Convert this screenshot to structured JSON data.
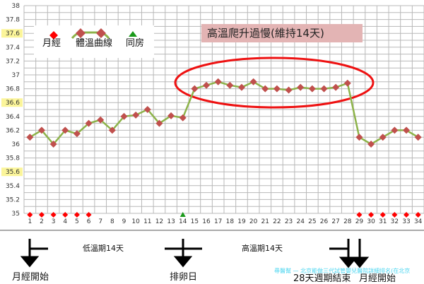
{
  "chart_data": {
    "type": "line",
    "title": "",
    "xlabel": "",
    "ylabel": "",
    "ylim": [
      35,
      38
    ],
    "y_ticks": [
      "38",
      "37.8",
      "37.6",
      "37.4",
      "37.2",
      "37",
      "36.8",
      "36.6",
      "36.4",
      "36.2",
      "36",
      "35.8",
      "35.6",
      "35.4",
      "35.2",
      "35"
    ],
    "y_highlighted_ticks": [
      "37.6",
      "36.6",
      "35.6"
    ],
    "grid": true,
    "categories": [
      1,
      2,
      3,
      4,
      5,
      6,
      7,
      8,
      9,
      10,
      11,
      12,
      13,
      14,
      15,
      16,
      17,
      18,
      19,
      20,
      21,
      22,
      23,
      24,
      25,
      26,
      27,
      28,
      29,
      30,
      31,
      32,
      33,
      34
    ],
    "series": [
      {
        "name": "體溫曲線",
        "color": "#8db34a",
        "marker_color": "#c0504d",
        "values": [
          36.1,
          36.2,
          36.0,
          36.2,
          36.15,
          36.3,
          36.35,
          36.2,
          36.4,
          36.42,
          36.5,
          36.3,
          36.41,
          36.38,
          36.8,
          36.85,
          36.9,
          36.85,
          36.82,
          36.9,
          36.8,
          36.8,
          36.78,
          36.82,
          36.8,
          36.8,
          36.82,
          36.88,
          36.1,
          36.0,
          36.1,
          36.2,
          36.2,
          36.1
        ]
      },
      {
        "name": "月經",
        "color": "#ff0000",
        "days": [
          1,
          2,
          3,
          4,
          5,
          6,
          29,
          30,
          31,
          32,
          33,
          34
        ]
      },
      {
        "name": "同房",
        "color": "#1a9a1a",
        "days": [
          14
        ]
      }
    ],
    "legend": {
      "position": "top-left",
      "items": [
        "月經",
        "體溫曲線",
        "同房"
      ]
    },
    "callout": "高溫爬升過慢(維持14天)",
    "ellipse_highlight": {
      "from_day": 15,
      "to_day": 28,
      "color": "#ff0000"
    }
  },
  "annotations": {
    "low_phase": "低溫期14天",
    "high_phase": "高溫期14天",
    "period_start": "月經開始",
    "ovulation": "排卵日",
    "cycle_end": "28天週期結束",
    "period_start_2": "月經開始"
  },
  "watermark": "尋醫幫 — 北京能做三代試管嬰兒醫院詳細排名(在北京"
}
